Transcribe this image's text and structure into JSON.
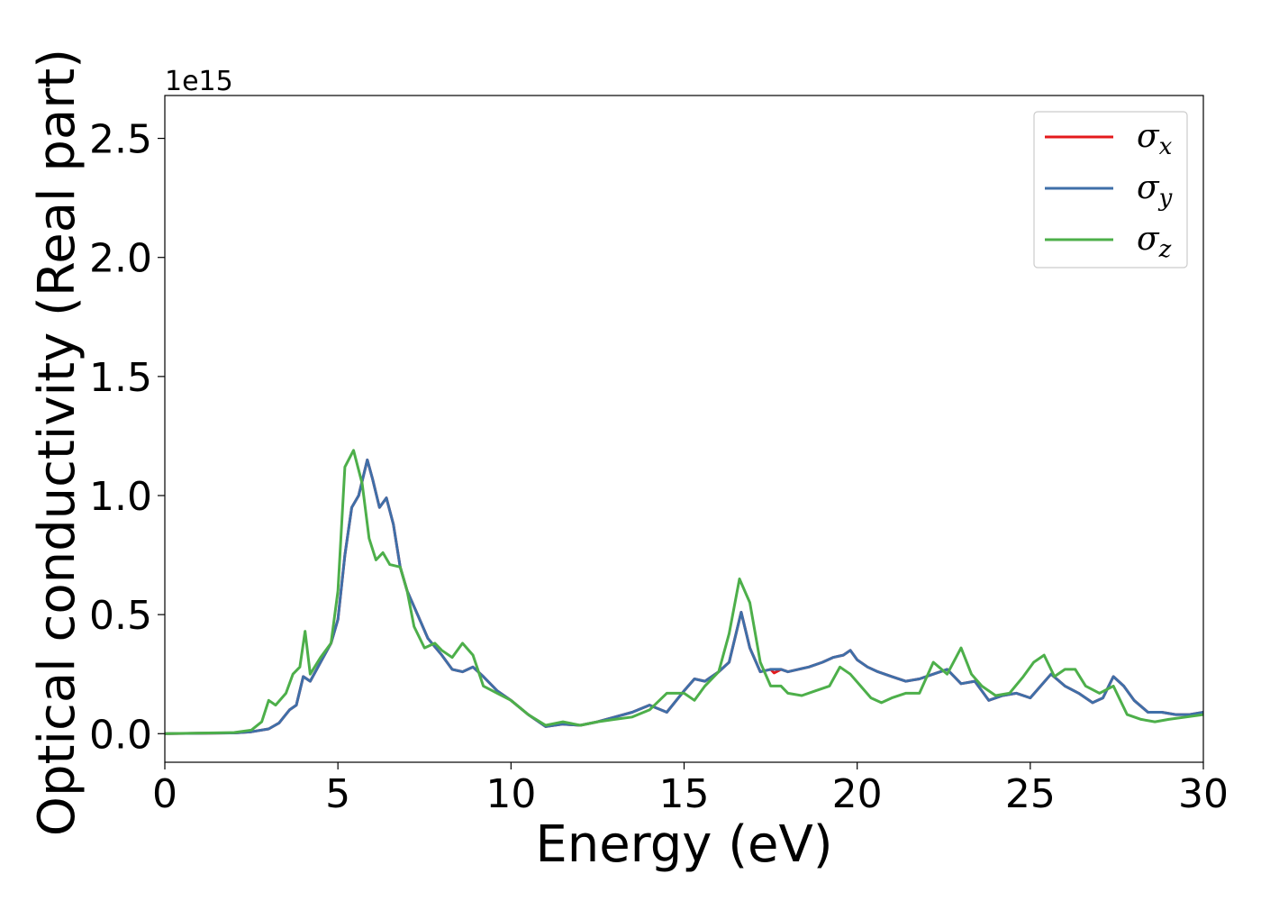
{
  "chart_data": {
    "type": "line",
    "xlabel": "Energy (eV)",
    "ylabel": "Optical conductivity (Real part)",
    "y_offset_label": "1e15",
    "xlim": [
      0,
      30
    ],
    "ylim": [
      -0.12,
      2.68
    ],
    "x_ticks": [
      0,
      5,
      10,
      15,
      20,
      25,
      30
    ],
    "x_tick_labels": [
      "0",
      "5",
      "10",
      "15",
      "20",
      "25",
      "30"
    ],
    "y_ticks": [
      0.0,
      0.5,
      1.0,
      1.5,
      2.0,
      2.5
    ],
    "y_tick_labels": [
      "0.0",
      "0.5",
      "1.0",
      "1.5",
      "2.0",
      "2.5"
    ],
    "grid": false,
    "legend_position": "top-right",
    "series": [
      {
        "name": "σ",
        "subscript": "x",
        "color": "#e41a1c",
        "points": [
          [
            0,
            0
          ],
          [
            2,
            0.003
          ],
          [
            2.5,
            0.008
          ],
          [
            3,
            0.02
          ],
          [
            3.3,
            0.045
          ],
          [
            3.6,
            0.1
          ],
          [
            3.8,
            0.12
          ],
          [
            4,
            0.24
          ],
          [
            4.2,
            0.22
          ],
          [
            4.5,
            0.3
          ],
          [
            4.8,
            0.38
          ],
          [
            5,
            0.48
          ],
          [
            5.2,
            0.75
          ],
          [
            5.4,
            0.95
          ],
          [
            5.6,
            1.0
          ],
          [
            5.85,
            1.15
          ],
          [
            6,
            1.07
          ],
          [
            6.2,
            0.95
          ],
          [
            6.4,
            0.99
          ],
          [
            6.6,
            0.88
          ],
          [
            6.8,
            0.7
          ],
          [
            7,
            0.6
          ],
          [
            7.3,
            0.5
          ],
          [
            7.6,
            0.4
          ],
          [
            8,
            0.33
          ],
          [
            8.3,
            0.27
          ],
          [
            8.6,
            0.26
          ],
          [
            8.9,
            0.28
          ],
          [
            9.2,
            0.24
          ],
          [
            9.6,
            0.18
          ],
          [
            10,
            0.14
          ],
          [
            10.5,
            0.08
          ],
          [
            11,
            0.03
          ],
          [
            11.5,
            0.04
          ],
          [
            12,
            0.035
          ],
          [
            12.5,
            0.05
          ],
          [
            13,
            0.07
          ],
          [
            13.5,
            0.09
          ],
          [
            14,
            0.12
          ],
          [
            14.5,
            0.09
          ],
          [
            15,
            0.18
          ],
          [
            15.3,
            0.23
          ],
          [
            15.6,
            0.22
          ],
          [
            16,
            0.26
          ],
          [
            16.3,
            0.3
          ],
          [
            16.65,
            0.51
          ],
          [
            16.9,
            0.36
          ],
          [
            17.2,
            0.26
          ],
          [
            17.5,
            0.27
          ],
          [
            17.6,
            0.255
          ],
          [
            17.8,
            0.27
          ],
          [
            18,
            0.26
          ],
          [
            18.3,
            0.27
          ],
          [
            18.6,
            0.28
          ],
          [
            19,
            0.3
          ],
          [
            19.3,
            0.32
          ],
          [
            19.6,
            0.33
          ],
          [
            19.8,
            0.35
          ],
          [
            20,
            0.31
          ],
          [
            20.3,
            0.28
          ],
          [
            20.6,
            0.26
          ],
          [
            21,
            0.24
          ],
          [
            21.4,
            0.22
          ],
          [
            21.8,
            0.23
          ],
          [
            22.2,
            0.25
          ],
          [
            22.6,
            0.27
          ],
          [
            23,
            0.21
          ],
          [
            23.4,
            0.22
          ],
          [
            23.8,
            0.14
          ],
          [
            24.2,
            0.16
          ],
          [
            24.6,
            0.17
          ],
          [
            25,
            0.15
          ],
          [
            25.3,
            0.2
          ],
          [
            25.6,
            0.25
          ],
          [
            26,
            0.2
          ],
          [
            26.4,
            0.17
          ],
          [
            26.8,
            0.13
          ],
          [
            27.1,
            0.15
          ],
          [
            27.4,
            0.24
          ],
          [
            27.7,
            0.2
          ],
          [
            28,
            0.14
          ],
          [
            28.4,
            0.09
          ],
          [
            28.8,
            0.09
          ],
          [
            29.2,
            0.08
          ],
          [
            29.6,
            0.08
          ],
          [
            30,
            0.09
          ]
        ]
      },
      {
        "name": "σ",
        "subscript": "y",
        "color": "#3f6fa8",
        "points": [
          [
            0,
            0
          ],
          [
            2,
            0.003
          ],
          [
            2.5,
            0.008
          ],
          [
            3,
            0.02
          ],
          [
            3.3,
            0.045
          ],
          [
            3.6,
            0.1
          ],
          [
            3.8,
            0.12
          ],
          [
            4,
            0.24
          ],
          [
            4.2,
            0.22
          ],
          [
            4.5,
            0.3
          ],
          [
            4.8,
            0.38
          ],
          [
            5,
            0.48
          ],
          [
            5.2,
            0.75
          ],
          [
            5.4,
            0.95
          ],
          [
            5.6,
            1.0
          ],
          [
            5.85,
            1.15
          ],
          [
            6,
            1.07
          ],
          [
            6.2,
            0.95
          ],
          [
            6.4,
            0.99
          ],
          [
            6.6,
            0.88
          ],
          [
            6.8,
            0.7
          ],
          [
            7,
            0.6
          ],
          [
            7.3,
            0.5
          ],
          [
            7.6,
            0.4
          ],
          [
            8,
            0.33
          ],
          [
            8.3,
            0.27
          ],
          [
            8.6,
            0.26
          ],
          [
            8.9,
            0.28
          ],
          [
            9.2,
            0.24
          ],
          [
            9.6,
            0.18
          ],
          [
            10,
            0.14
          ],
          [
            10.5,
            0.08
          ],
          [
            11,
            0.03
          ],
          [
            11.5,
            0.04
          ],
          [
            12,
            0.035
          ],
          [
            12.5,
            0.05
          ],
          [
            13,
            0.07
          ],
          [
            13.5,
            0.09
          ],
          [
            14,
            0.12
          ],
          [
            14.5,
            0.09
          ],
          [
            15,
            0.18
          ],
          [
            15.3,
            0.23
          ],
          [
            15.6,
            0.22
          ],
          [
            16,
            0.26
          ],
          [
            16.3,
            0.3
          ],
          [
            16.65,
            0.51
          ],
          [
            16.9,
            0.36
          ],
          [
            17.2,
            0.26
          ],
          [
            17.5,
            0.27
          ],
          [
            17.8,
            0.27
          ],
          [
            18,
            0.26
          ],
          [
            18.3,
            0.27
          ],
          [
            18.6,
            0.28
          ],
          [
            19,
            0.3
          ],
          [
            19.3,
            0.32
          ],
          [
            19.6,
            0.33
          ],
          [
            19.8,
            0.35
          ],
          [
            20,
            0.31
          ],
          [
            20.3,
            0.28
          ],
          [
            20.6,
            0.26
          ],
          [
            21,
            0.24
          ],
          [
            21.4,
            0.22
          ],
          [
            21.8,
            0.23
          ],
          [
            22.2,
            0.25
          ],
          [
            22.6,
            0.27
          ],
          [
            23,
            0.21
          ],
          [
            23.4,
            0.22
          ],
          [
            23.8,
            0.14
          ],
          [
            24.2,
            0.16
          ],
          [
            24.6,
            0.17
          ],
          [
            25,
            0.15
          ],
          [
            25.3,
            0.2
          ],
          [
            25.6,
            0.25
          ],
          [
            26,
            0.2
          ],
          [
            26.4,
            0.17
          ],
          [
            26.8,
            0.13
          ],
          [
            27.1,
            0.15
          ],
          [
            27.4,
            0.24
          ],
          [
            27.7,
            0.2
          ],
          [
            28,
            0.14
          ],
          [
            28.4,
            0.09
          ],
          [
            28.8,
            0.09
          ],
          [
            29.2,
            0.08
          ],
          [
            29.6,
            0.08
          ],
          [
            30,
            0.09
          ]
        ]
      },
      {
        "name": "σ",
        "subscript": "z",
        "color": "#4daf4a",
        "points": [
          [
            0,
            0
          ],
          [
            2,
            0.005
          ],
          [
            2.5,
            0.015
          ],
          [
            2.8,
            0.05
          ],
          [
            3,
            0.14
          ],
          [
            3.2,
            0.12
          ],
          [
            3.5,
            0.17
          ],
          [
            3.7,
            0.25
          ],
          [
            3.9,
            0.28
          ],
          [
            4.05,
            0.43
          ],
          [
            4.2,
            0.25
          ],
          [
            4.5,
            0.32
          ],
          [
            4.8,
            0.38
          ],
          [
            5,
            0.6
          ],
          [
            5.2,
            1.12
          ],
          [
            5.45,
            1.19
          ],
          [
            5.7,
            1.05
          ],
          [
            5.9,
            0.82
          ],
          [
            6.1,
            0.73
          ],
          [
            6.3,
            0.76
          ],
          [
            6.5,
            0.71
          ],
          [
            6.8,
            0.7
          ],
          [
            7,
            0.6
          ],
          [
            7.2,
            0.45
          ],
          [
            7.5,
            0.36
          ],
          [
            7.8,
            0.38
          ],
          [
            8,
            0.35
          ],
          [
            8.3,
            0.32
          ],
          [
            8.6,
            0.38
          ],
          [
            8.9,
            0.33
          ],
          [
            9.2,
            0.2
          ],
          [
            9.6,
            0.17
          ],
          [
            10,
            0.14
          ],
          [
            10.5,
            0.08
          ],
          [
            11,
            0.035
          ],
          [
            11.5,
            0.05
          ],
          [
            12,
            0.035
          ],
          [
            12.5,
            0.05
          ],
          [
            13,
            0.06
          ],
          [
            13.5,
            0.07
          ],
          [
            14,
            0.1
          ],
          [
            14.5,
            0.17
          ],
          [
            15,
            0.17
          ],
          [
            15.3,
            0.14
          ],
          [
            15.6,
            0.2
          ],
          [
            16,
            0.26
          ],
          [
            16.3,
            0.42
          ],
          [
            16.6,
            0.65
          ],
          [
            16.9,
            0.55
          ],
          [
            17.2,
            0.3
          ],
          [
            17.5,
            0.2
          ],
          [
            17.8,
            0.2
          ],
          [
            18,
            0.17
          ],
          [
            18.4,
            0.16
          ],
          [
            18.8,
            0.18
          ],
          [
            19.2,
            0.2
          ],
          [
            19.5,
            0.28
          ],
          [
            19.8,
            0.25
          ],
          [
            20.1,
            0.2
          ],
          [
            20.4,
            0.15
          ],
          [
            20.7,
            0.13
          ],
          [
            21,
            0.15
          ],
          [
            21.4,
            0.17
          ],
          [
            21.8,
            0.17
          ],
          [
            22.2,
            0.3
          ],
          [
            22.6,
            0.25
          ],
          [
            23,
            0.36
          ],
          [
            23.3,
            0.25
          ],
          [
            23.6,
            0.2
          ],
          [
            24,
            0.16
          ],
          [
            24.4,
            0.17
          ],
          [
            24.8,
            0.24
          ],
          [
            25.1,
            0.3
          ],
          [
            25.4,
            0.33
          ],
          [
            25.7,
            0.24
          ],
          [
            26,
            0.27
          ],
          [
            26.3,
            0.27
          ],
          [
            26.6,
            0.2
          ],
          [
            27,
            0.17
          ],
          [
            27.4,
            0.2
          ],
          [
            27.8,
            0.08
          ],
          [
            28.2,
            0.06
          ],
          [
            28.6,
            0.05
          ],
          [
            29,
            0.06
          ],
          [
            29.5,
            0.07
          ],
          [
            30,
            0.08
          ]
        ]
      }
    ]
  }
}
